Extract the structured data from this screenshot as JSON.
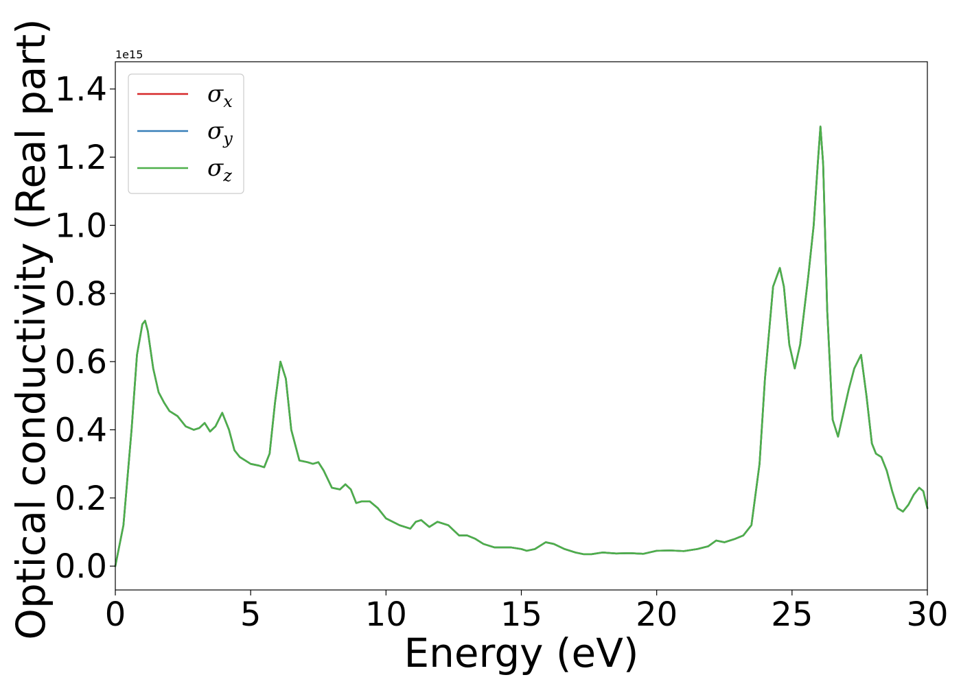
{
  "chart_data": {
    "type": "line",
    "xlabel": "Energy (eV)",
    "ylabel": "Optical conductivity (Real part)",
    "y_offset_label": "1e15",
    "xlim": [
      0,
      30
    ],
    "ylim": [
      -0.07,
      1.48
    ],
    "x_ticks": [
      0,
      5,
      10,
      15,
      20,
      25,
      30
    ],
    "x_tick_labels": [
      "0",
      "5",
      "10",
      "15",
      "20",
      "25",
      "30"
    ],
    "y_ticks": [
      0.0,
      0.2,
      0.4,
      0.6,
      0.8,
      1.0,
      1.2,
      1.4
    ],
    "y_tick_labels": [
      "0.0",
      "0.2",
      "0.4",
      "0.6",
      "0.8",
      "1.0",
      "1.2",
      "1.4"
    ],
    "grid": false,
    "legend_position": "top-left",
    "x": [
      0,
      0.3,
      0.6,
      0.8,
      1.0,
      1.1,
      1.2,
      1.4,
      1.6,
      1.8,
      2.0,
      2.3,
      2.6,
      2.9,
      3.1,
      3.3,
      3.5,
      3.7,
      3.95,
      4.2,
      4.4,
      4.6,
      5.0,
      5.3,
      5.5,
      5.7,
      5.9,
      6.1,
      6.3,
      6.5,
      6.8,
      7.1,
      7.3,
      7.5,
      7.7,
      8.0,
      8.3,
      8.5,
      8.7,
      8.9,
      9.1,
      9.4,
      9.7,
      10.0,
      10.5,
      10.9,
      11.1,
      11.3,
      11.6,
      11.9,
      12.3,
      12.7,
      13.0,
      13.3,
      13.6,
      14.0,
      14.6,
      15.0,
      15.2,
      15.5,
      15.9,
      16.2,
      16.6,
      17.0,
      17.3,
      17.6,
      18.0,
      18.5,
      19.0,
      19.5,
      20.0,
      20.5,
      21.0,
      21.5,
      21.9,
      22.2,
      22.5,
      22.9,
      23.2,
      23.5,
      23.8,
      24.0,
      24.3,
      24.55,
      24.7,
      24.9,
      25.1,
      25.3,
      25.6,
      25.8,
      25.95,
      26.05,
      26.15,
      26.3,
      26.5,
      26.7,
      26.9,
      27.1,
      27.3,
      27.55,
      27.75,
      27.95,
      28.1,
      28.3,
      28.5,
      28.7,
      28.9,
      29.1,
      29.3,
      29.5,
      29.7,
      29.85,
      30.0
    ],
    "series": [
      {
        "name": "σx",
        "color": "#d62728",
        "values": [
          0.0,
          0.12,
          0.4,
          0.62,
          0.71,
          0.72,
          0.69,
          0.58,
          0.51,
          0.48,
          0.455,
          0.44,
          0.41,
          0.4,
          0.405,
          0.42,
          0.395,
          0.41,
          0.45,
          0.4,
          0.34,
          0.32,
          0.3,
          0.295,
          0.29,
          0.33,
          0.48,
          0.6,
          0.55,
          0.4,
          0.31,
          0.305,
          0.3,
          0.305,
          0.28,
          0.23,
          0.225,
          0.24,
          0.225,
          0.185,
          0.19,
          0.19,
          0.17,
          0.14,
          0.12,
          0.11,
          0.13,
          0.135,
          0.115,
          0.13,
          0.12,
          0.09,
          0.09,
          0.08,
          0.065,
          0.055,
          0.055,
          0.05,
          0.045,
          0.05,
          0.07,
          0.065,
          0.05,
          0.04,
          0.035,
          0.035,
          0.04,
          0.037,
          0.038,
          0.036,
          0.045,
          0.046,
          0.044,
          0.05,
          0.058,
          0.075,
          0.07,
          0.08,
          0.09,
          0.12,
          0.3,
          0.55,
          0.82,
          0.875,
          0.82,
          0.65,
          0.58,
          0.65,
          0.85,
          1.0,
          1.18,
          1.29,
          1.18,
          0.75,
          0.43,
          0.38,
          0.45,
          0.52,
          0.58,
          0.62,
          0.5,
          0.36,
          0.33,
          0.32,
          0.28,
          0.22,
          0.17,
          0.16,
          0.18,
          0.21,
          0.23,
          0.22,
          0.17
        ]
      },
      {
        "name": "σy",
        "color": "#377eb8",
        "values": [
          0.0,
          0.12,
          0.4,
          0.62,
          0.71,
          0.72,
          0.69,
          0.58,
          0.51,
          0.48,
          0.455,
          0.44,
          0.41,
          0.4,
          0.405,
          0.42,
          0.395,
          0.41,
          0.45,
          0.4,
          0.34,
          0.32,
          0.3,
          0.295,
          0.29,
          0.33,
          0.48,
          0.6,
          0.55,
          0.4,
          0.31,
          0.305,
          0.3,
          0.305,
          0.28,
          0.23,
          0.225,
          0.24,
          0.225,
          0.185,
          0.19,
          0.19,
          0.17,
          0.14,
          0.12,
          0.11,
          0.13,
          0.135,
          0.115,
          0.13,
          0.12,
          0.09,
          0.09,
          0.08,
          0.065,
          0.055,
          0.055,
          0.05,
          0.045,
          0.05,
          0.07,
          0.065,
          0.05,
          0.04,
          0.035,
          0.035,
          0.04,
          0.037,
          0.038,
          0.036,
          0.045,
          0.046,
          0.044,
          0.05,
          0.058,
          0.075,
          0.07,
          0.08,
          0.09,
          0.12,
          0.3,
          0.55,
          0.82,
          0.875,
          0.82,
          0.65,
          0.58,
          0.65,
          0.85,
          1.0,
          1.18,
          1.29,
          1.18,
          0.75,
          0.43,
          0.38,
          0.45,
          0.52,
          0.58,
          0.62,
          0.5,
          0.36,
          0.33,
          0.32,
          0.28,
          0.22,
          0.17,
          0.16,
          0.18,
          0.21,
          0.23,
          0.22,
          0.17
        ]
      },
      {
        "name": "σz",
        "color": "#4daf4a",
        "values": [
          0.0,
          0.12,
          0.4,
          0.62,
          0.71,
          0.72,
          0.69,
          0.58,
          0.51,
          0.48,
          0.455,
          0.44,
          0.41,
          0.4,
          0.405,
          0.42,
          0.395,
          0.41,
          0.45,
          0.4,
          0.34,
          0.32,
          0.3,
          0.295,
          0.29,
          0.33,
          0.48,
          0.6,
          0.55,
          0.4,
          0.31,
          0.305,
          0.3,
          0.305,
          0.28,
          0.23,
          0.225,
          0.24,
          0.225,
          0.185,
          0.19,
          0.19,
          0.17,
          0.14,
          0.12,
          0.11,
          0.13,
          0.135,
          0.115,
          0.13,
          0.12,
          0.09,
          0.09,
          0.08,
          0.065,
          0.055,
          0.055,
          0.05,
          0.045,
          0.05,
          0.07,
          0.065,
          0.05,
          0.04,
          0.035,
          0.035,
          0.04,
          0.037,
          0.038,
          0.036,
          0.045,
          0.046,
          0.044,
          0.05,
          0.058,
          0.075,
          0.07,
          0.08,
          0.09,
          0.12,
          0.3,
          0.55,
          0.82,
          0.875,
          0.82,
          0.65,
          0.58,
          0.65,
          0.85,
          1.0,
          1.18,
          1.29,
          1.18,
          0.75,
          0.43,
          0.38,
          0.45,
          0.52,
          0.58,
          0.62,
          0.5,
          0.36,
          0.33,
          0.32,
          0.28,
          0.22,
          0.17,
          0.16,
          0.18,
          0.21,
          0.23,
          0.22,
          0.17
        ]
      }
    ],
    "legend": [
      {
        "base": "σ",
        "sub": "x",
        "color": "#d62728"
      },
      {
        "base": "σ",
        "sub": "y",
        "color": "#377eb8"
      },
      {
        "base": "σ",
        "sub": "z",
        "color": "#4daf4a"
      }
    ]
  }
}
